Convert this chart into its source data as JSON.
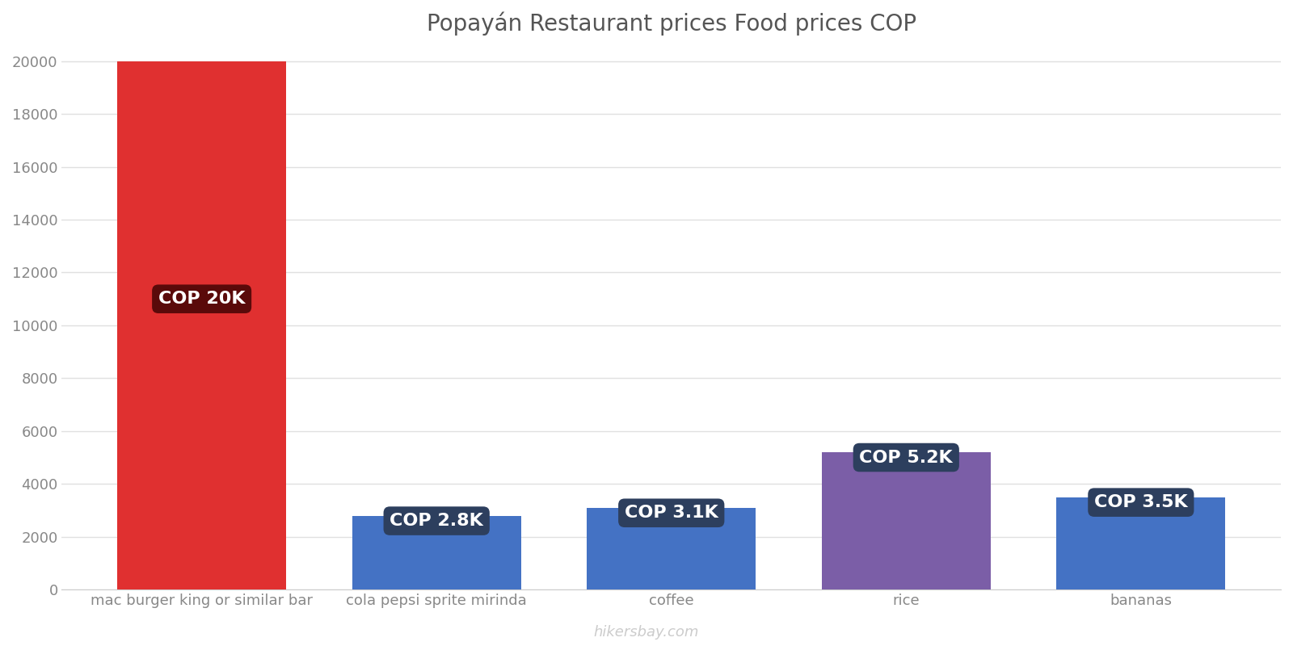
{
  "title": "Popayán Restaurant prices Food prices COP",
  "categories": [
    "mac burger king or similar bar",
    "cola pepsi sprite mirinda",
    "coffee",
    "rice",
    "bananas"
  ],
  "values": [
    20000,
    2800,
    3100,
    5200,
    3500
  ],
  "bar_colors": [
    "#e03030",
    "#4472c4",
    "#4472c4",
    "#7b5ea7",
    "#4472c4"
  ],
  "label_texts": [
    "COP 20K",
    "COP 2.8K",
    "COP 3.1K",
    "COP 5.2K",
    "COP 3.5K"
  ],
  "label_bg_colors": [
    "#5a0a0a",
    "#2d3f5e",
    "#2d3f5e",
    "#2d3f5e",
    "#2d3f5e"
  ],
  "label_text_color": "#ffffff",
  "ylim": [
    0,
    20500
  ],
  "yticks": [
    0,
    2000,
    4000,
    6000,
    8000,
    10000,
    12000,
    14000,
    16000,
    18000,
    20000
  ],
  "background_color": "#ffffff",
  "title_fontsize": 20,
  "tick_fontsize": 13,
  "label_fontsize": 16,
  "watermark": "hikersbay.com",
  "grid_color": "#e0e0e0",
  "axis_color": "#cccccc",
  "bar_width": 0.72
}
